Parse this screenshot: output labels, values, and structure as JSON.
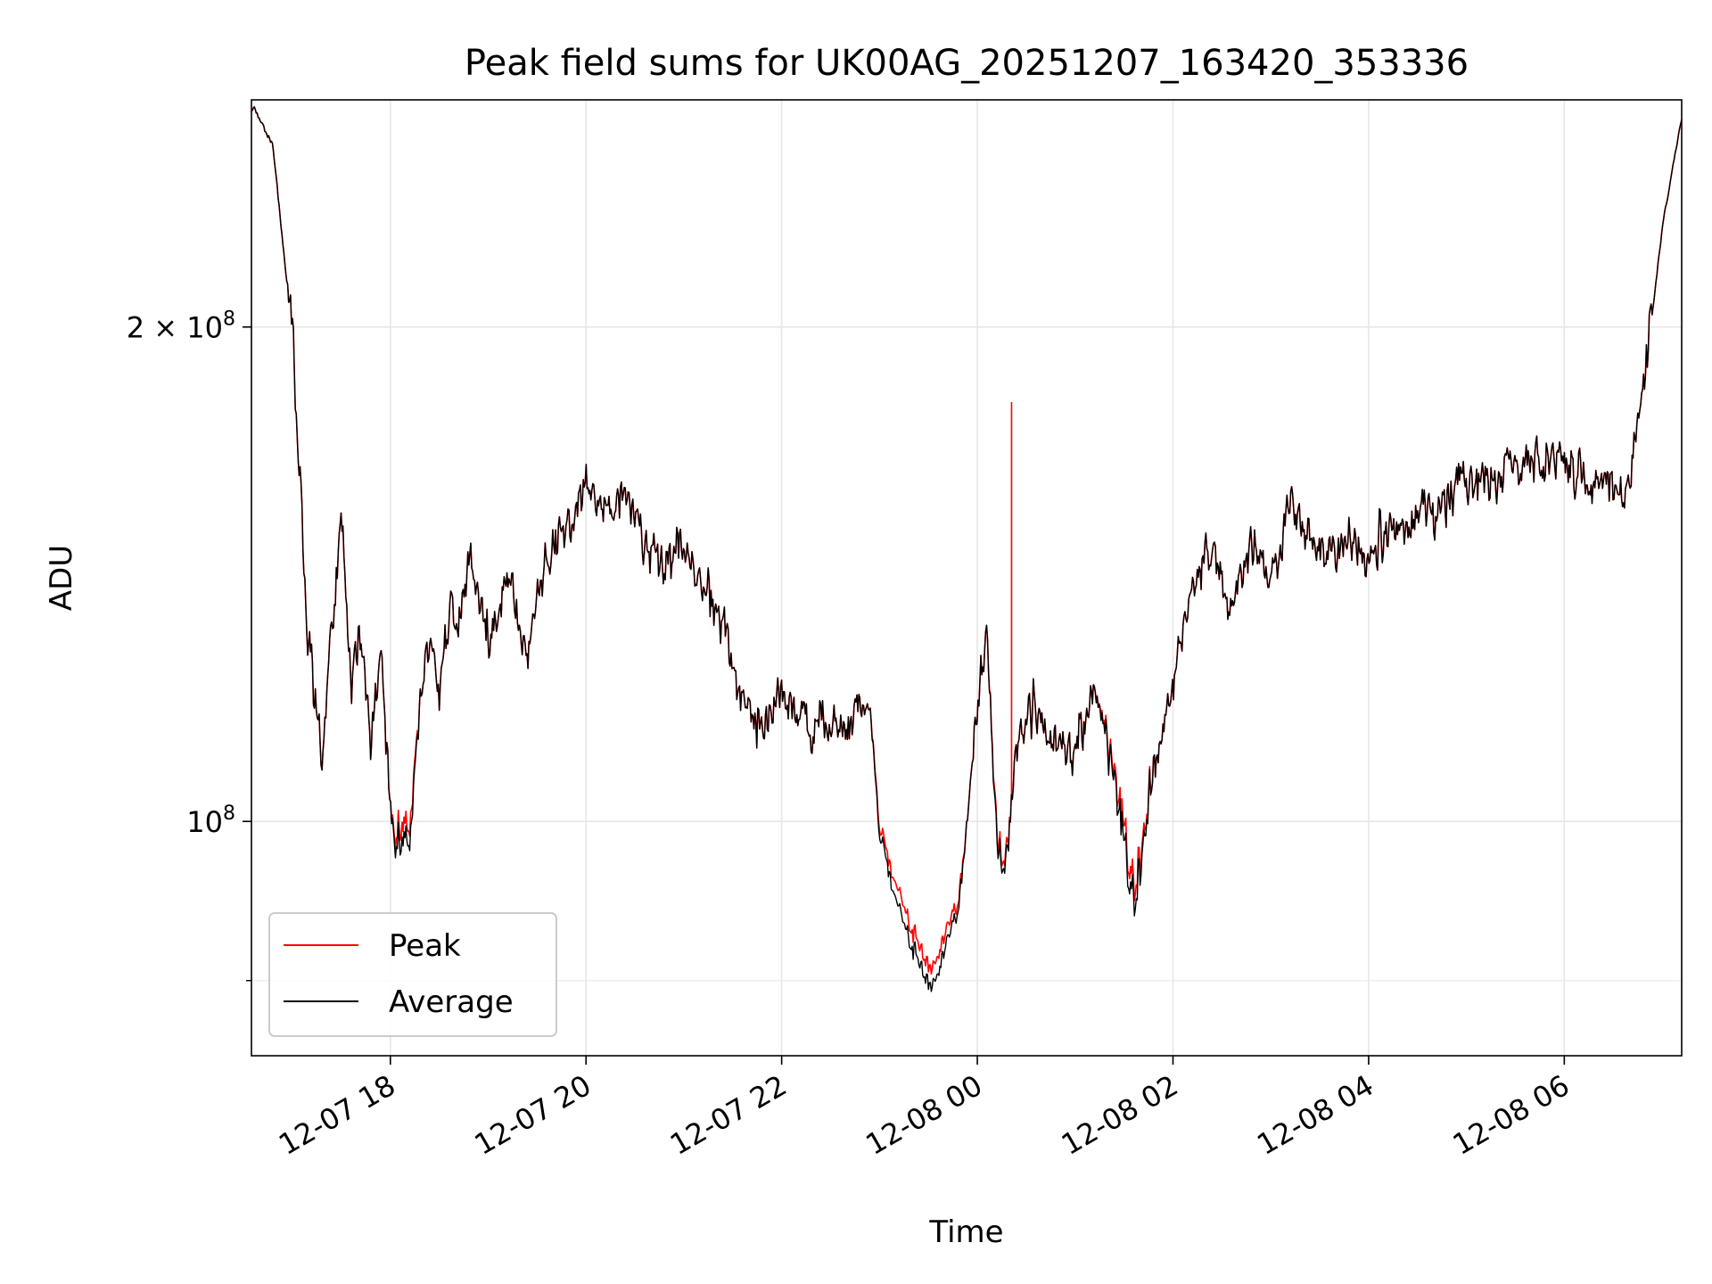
{
  "chart_data": {
    "type": "line",
    "title": "Peak field sums for UK00AG_20251207_163420_353336",
    "xlabel": "Time",
    "ylabel": "ADU",
    "yscale": "log",
    "ylim": [
      72000000,
      275000000
    ],
    "grid": true,
    "legend_position": "lower-left",
    "x_range_hours": [
      16.58,
      7.2
    ],
    "x_ticks": [
      {
        "hour": 18,
        "label": "12-07 18"
      },
      {
        "hour": 20,
        "label": "12-07 20"
      },
      {
        "hour": 22,
        "label": "12-07 22"
      },
      {
        "hour": 24,
        "label": "12-08 00"
      },
      {
        "hour": 26,
        "label": "12-08 02"
      },
      {
        "hour": 28,
        "label": "12-08 04"
      },
      {
        "hour": 30,
        "label": "12-08 06"
      }
    ],
    "y_ticks": [
      {
        "value": 100000000,
        "base": "10",
        "exp": "8"
      },
      {
        "value": 200000000,
        "base": "2 × 10",
        "exp": "8"
      }
    ],
    "y_minor_ticks": [
      80000000
    ],
    "x_hours": [
      16.6,
      16.8,
      16.9,
      17.0,
      17.05,
      17.15,
      17.3,
      17.4,
      17.5,
      17.6,
      17.7,
      17.8,
      17.9,
      18.0,
      18.05,
      18.1,
      18.2,
      18.3,
      18.4,
      18.5,
      18.6,
      18.7,
      18.8,
      18.9,
      19.0,
      19.2,
      19.4,
      19.5,
      19.6,
      19.8,
      20.0,
      20.2,
      20.4,
      20.6,
      20.8,
      21.0,
      21.2,
      21.4,
      21.5,
      21.6,
      21.8,
      22.0,
      22.2,
      22.4,
      22.6,
      22.8,
      22.9,
      23.0,
      23.2,
      23.4,
      23.5,
      23.6,
      23.8,
      23.9,
      24.0,
      24.1,
      24.2,
      24.3,
      24.35,
      24.4,
      24.5,
      24.6,
      24.8,
      25.0,
      25.2,
      25.4,
      25.5,
      25.6,
      25.7,
      25.8,
      26.0,
      26.2,
      26.4,
      26.6,
      26.8,
      27.0,
      27.2,
      27.5,
      27.8,
      28.0,
      28.2,
      28.4,
      28.6,
      28.8,
      29.0,
      29.2,
      29.4,
      29.6,
      29.8,
      30.0,
      30.2,
      30.4,
      30.6,
      30.8,
      31.0,
      31.2
    ],
    "series": [
      {
        "name": "Average",
        "color": "#000000",
        "values": [
          272000000,
          258000000,
          225000000,
          198000000,
          170000000,
          132000000,
          108000000,
          130000000,
          155000000,
          120000000,
          132000000,
          110000000,
          128000000,
          102000000,
          98000000,
          96000000,
          97000000,
          118000000,
          128000000,
          120000000,
          135000000,
          130000000,
          145000000,
          138000000,
          128000000,
          142000000,
          125000000,
          138000000,
          145000000,
          150000000,
          160000000,
          153000000,
          160000000,
          148000000,
          142000000,
          148000000,
          138000000,
          132000000,
          126000000,
          120000000,
          112000000,
          120000000,
          116000000,
          115000000,
          113000000,
          117000000,
          118000000,
          98000000,
          88000000,
          82000000,
          80000000,
          81000000,
          88000000,
          100000000,
          118000000,
          130000000,
          96000000,
          95000000,
          103000000,
          110000000,
          115000000,
          118000000,
          110000000,
          112000000,
          120000000,
          108000000,
          96000000,
          90000000,
          97000000,
          108000000,
          122000000,
          140000000,
          148000000,
          135000000,
          147000000,
          140000000,
          155000000,
          145000000,
          148000000,
          142000000,
          152000000,
          150000000,
          156000000,
          157000000,
          162000000,
          160000000,
          164000000,
          166000000,
          165000000,
          166000000,
          162000000,
          160000000,
          157000000,
          180000000,
          230000000,
          268000000
        ]
      },
      {
        "name": "Peak",
        "color": "#ff0000",
        "spike": {
          "hour": 24.35,
          "value": 180000000
        },
        "values": [
          272000000,
          258000000,
          225000000,
          198000000,
          170000000,
          132000000,
          108000000,
          130000000,
          155000000,
          120000000,
          132000000,
          110000000,
          128000000,
          102000000,
          99000000,
          98000000,
          99000000,
          118000000,
          128000000,
          120000000,
          135000000,
          130000000,
          145000000,
          138000000,
          128000000,
          142000000,
          125000000,
          138000000,
          145000000,
          150000000,
          160000000,
          153000000,
          160000000,
          148000000,
          142000000,
          148000000,
          138000000,
          132000000,
          126000000,
          120000000,
          112000000,
          120000000,
          116000000,
          115000000,
          113000000,
          117000000,
          118000000,
          99000000,
          90000000,
          84000000,
          82000000,
          83000000,
          89000000,
          100000000,
          118000000,
          130000000,
          97000000,
          96000000,
          103000000,
          110000000,
          115000000,
          118000000,
          110000000,
          112000000,
          120000000,
          109000000,
          98000000,
          92000000,
          98000000,
          108000000,
          122000000,
          140000000,
          148000000,
          135000000,
          147000000,
          140000000,
          155000000,
          145000000,
          148000000,
          142000000,
          152000000,
          150000000,
          156000000,
          157000000,
          162000000,
          160000000,
          164000000,
          166000000,
          165000000,
          166000000,
          162000000,
          160000000,
          157000000,
          180000000,
          230000000,
          268000000
        ]
      }
    ],
    "legend": [
      {
        "label": "Peak",
        "color": "#ff0000"
      },
      {
        "label": "Average",
        "color": "#000000"
      }
    ]
  }
}
